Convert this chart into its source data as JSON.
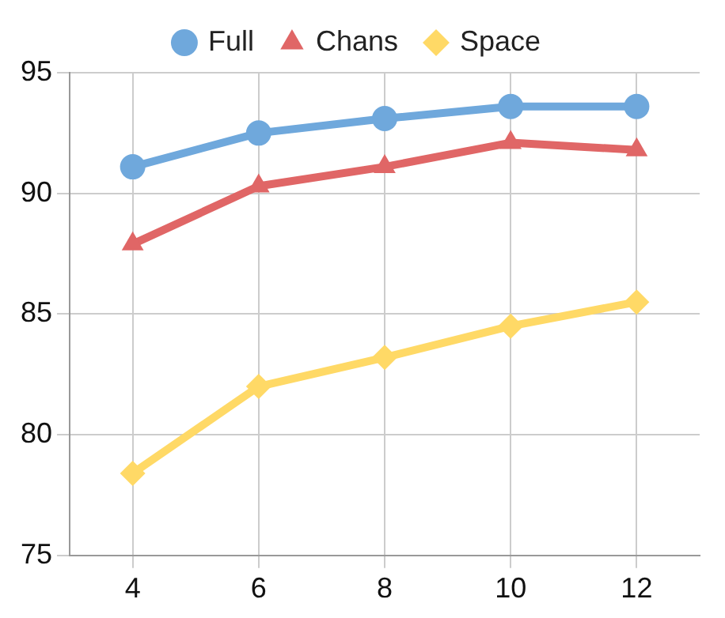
{
  "chart_data": {
    "type": "line",
    "categories": [
      "4",
      "6",
      "8",
      "10",
      "12"
    ],
    "series": [
      {
        "name": "Full",
        "color": "#6fa8dc",
        "marker": "circle",
        "values": [
          91.1,
          92.5,
          93.1,
          93.6,
          93.6
        ]
      },
      {
        "name": "Chans",
        "color": "#e06666",
        "marker": "triangle",
        "values": [
          87.9,
          90.3,
          91.1,
          92.1,
          91.8
        ]
      },
      {
        "name": "Space",
        "color": "#ffd966",
        "marker": "diamond",
        "values": [
          78.4,
          82.0,
          83.2,
          84.5,
          85.5
        ]
      }
    ],
    "ylim": [
      75,
      95
    ],
    "yticks": [
      75,
      80,
      85,
      90,
      95
    ],
    "grid": true,
    "legend": "top",
    "line_style": "solid"
  }
}
